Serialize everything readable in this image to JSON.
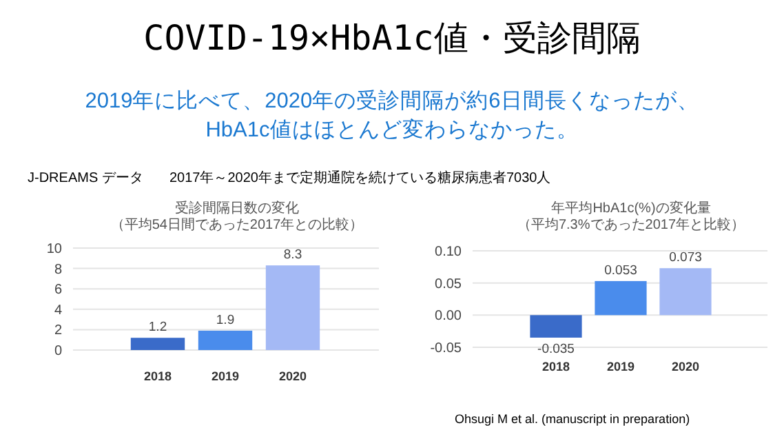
{
  "chart_data": [
    {
      "type": "other",
      "title": "COVID-19×HbA1c値・受診間隔",
      "subtitle": "2019年に比べて、2020年の受診間隔が約6日間長くなったが、\nHbA1c値はほとんど変わらなかった。",
      "annotations": [
        "J-DREAMS データ",
        "2017年～2020年まで定期通院を続けている糖尿病患者7030人",
        "Ohsugi M et al. (manuscript in preparation)"
      ]
    },
    {
      "type": "bar",
      "title": "受診間隔日数の変化",
      "subtitle": "（平均54日間であった2017年との比較）",
      "categories": [
        "2018",
        "2019",
        "2020"
      ],
      "values": [
        1.2,
        1.9,
        8.3
      ],
      "colors": [
        "#3a6bc9",
        "#4a8cec",
        "#a4b9f5"
      ],
      "ylim": [
        0,
        10
      ],
      "yticks": [
        0,
        2,
        4,
        6,
        8,
        10
      ],
      "grid": "y",
      "data_labels": true
    },
    {
      "type": "bar",
      "title": "年平均HbA1c(%)の変化量",
      "subtitle": "（平均7.3%であった2017年と比較）",
      "categories": [
        "2018",
        "2019",
        "2020"
      ],
      "values": [
        -0.035,
        0.053,
        0.073
      ],
      "colors": [
        "#3a6bc9",
        "#4a8cec",
        "#a4b9f5"
      ],
      "ylim": [
        -0.05,
        0.1
      ],
      "yticks": [
        {
          "value": -0.05,
          "label": "-0.05"
        },
        {
          "value": 0,
          "label": "0.00"
        },
        {
          "value": 0.05,
          "label": "0.05"
        },
        {
          "value": 0.1,
          "label": "0.10"
        }
      ],
      "grid": "y",
      "data_labels": true
    }
  ]
}
